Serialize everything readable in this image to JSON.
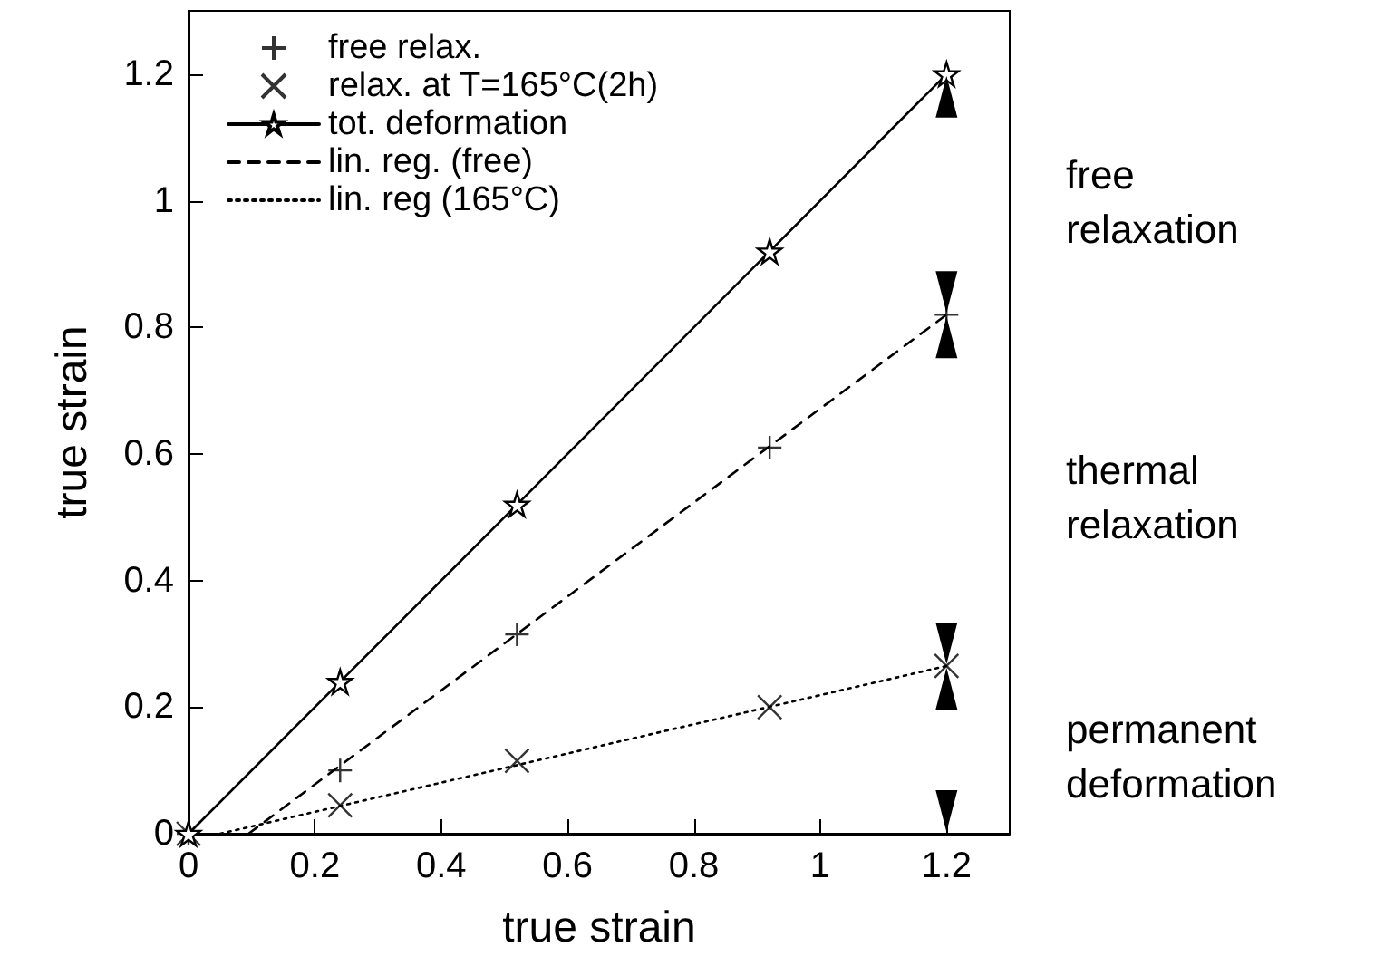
{
  "chart_data": {
    "type": "line",
    "xlabel": "true strain",
    "ylabel": "true strain",
    "xlim": [
      0,
      1.3
    ],
    "ylim": [
      0,
      1.3
    ],
    "xticks": [
      0,
      0.2,
      0.4,
      0.6,
      0.8,
      1,
      1.2
    ],
    "yticks": [
      0,
      0.2,
      0.4,
      0.6,
      0.8,
      1,
      1.2
    ],
    "grid": false,
    "legend": "top left",
    "series": [
      {
        "name": "free relax.",
        "type": "scatter",
        "color": "#000000",
        "marker": "plus",
        "x": [
          0,
          0.24,
          0.52,
          0.92,
          1.2
        ],
        "values": [
          0,
          0.1,
          0.315,
          0.61,
          0.82
        ]
      },
      {
        "name": "relax. at T=165°C(2h)",
        "type": "scatter",
        "color": "#000000",
        "marker": "cross",
        "x": [
          0,
          0.24,
          0.52,
          0.92,
          1.2
        ],
        "values": [
          0,
          0.045,
          0.115,
          0.2,
          0.265
        ]
      },
      {
        "name": "tot. deformation",
        "type": "line",
        "color": "#000000",
        "marker": "star",
        "line_style": "solid",
        "x": [
          0,
          0.24,
          0.52,
          0.92,
          1.2
        ],
        "values": [
          0,
          0.24,
          0.52,
          0.92,
          1.2
        ]
      },
      {
        "name": "lin. reg. (free)",
        "type": "line",
        "color": "#000000",
        "marker": "none",
        "line_style": "dashed",
        "x": [
          0.095,
          1.2
        ],
        "values": [
          0,
          0.82
        ]
      },
      {
        "name": "lin. reg (165°C)",
        "type": "line",
        "color": "#000000",
        "marker": "none",
        "line_style": "dotted",
        "x": [
          0.05,
          1.2
        ],
        "values": [
          0,
          0.265
        ]
      }
    ],
    "annotations": [
      "free\nrelaxation",
      "thermal\nrelaxation",
      "permanent\ndeformation"
    ]
  }
}
